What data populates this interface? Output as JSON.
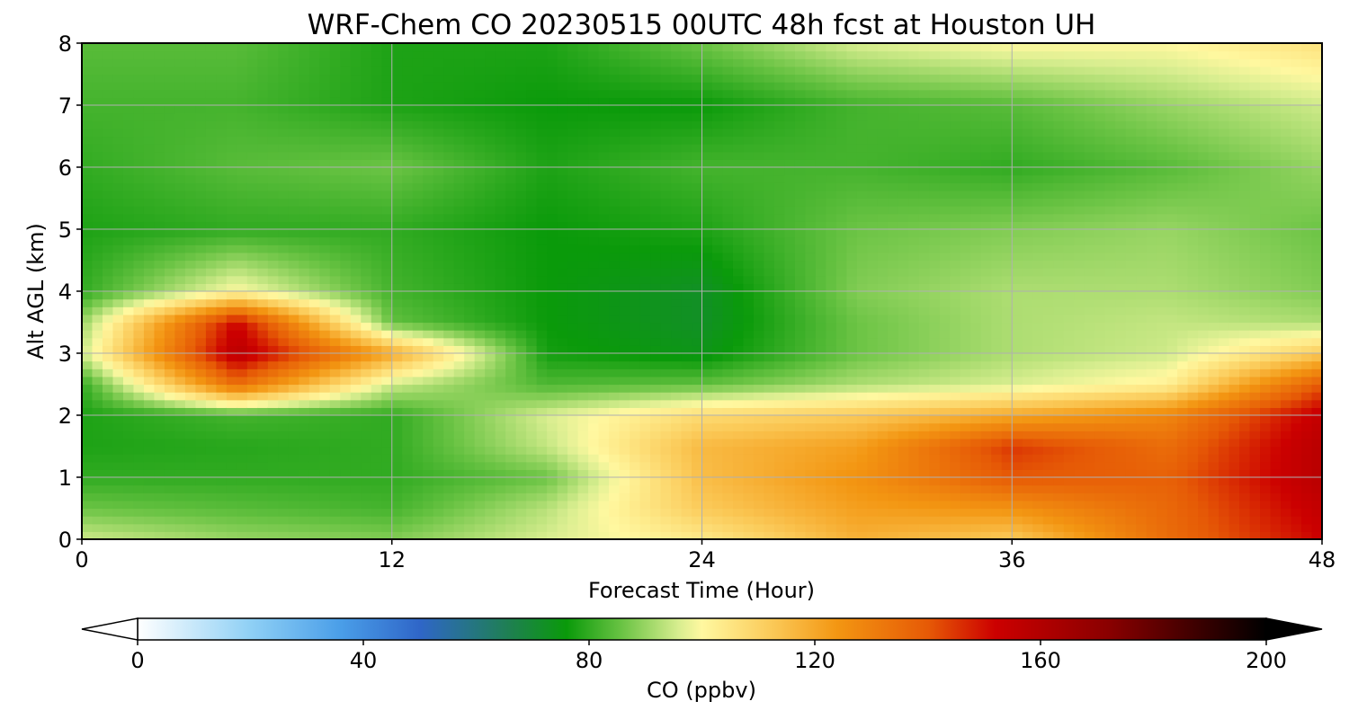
{
  "chart_data": {
    "type": "heatmap",
    "title": "WRF-Chem CO  20230515 00UTC 48h fcst at Houston UH",
    "xlabel": "Forecast Time (Hour)",
    "ylabel": "Alt AGL (km)",
    "xlim": [
      0,
      48
    ],
    "ylim": [
      0,
      8
    ],
    "xticks": [
      "0",
      "12",
      "24",
      "36",
      "48"
    ],
    "yticks": [
      "0",
      "1",
      "2",
      "3",
      "4",
      "5",
      "6",
      "7",
      "8"
    ],
    "grid": true,
    "x_hours": [
      0,
      6,
      12,
      18,
      24,
      30,
      36,
      42,
      48
    ],
    "y_km": [
      0,
      0.5,
      1,
      1.5,
      2,
      2.5,
      3,
      3.5,
      4,
      5,
      6,
      7,
      8
    ],
    "values_ppbv": [
      [
        95,
        90,
        88,
        96,
        104,
        118,
        112,
        135,
        152
      ],
      [
        86,
        84,
        82,
        93,
        112,
        122,
        125,
        136,
        155
      ],
      [
        80,
        80,
        80,
        86,
        115,
        125,
        140,
        138,
        158
      ],
      [
        78,
        79,
        80,
        94,
        116,
        122,
        145,
        135,
        158
      ],
      [
        78,
        82,
        80,
        96,
        108,
        112,
        120,
        128,
        155
      ],
      [
        80,
        135,
        95,
        83,
        85,
        92,
        96,
        102,
        140
      ],
      [
        95,
        158,
        120,
        77,
        74,
        86,
        92,
        95,
        112
      ],
      [
        90,
        152,
        85,
        76,
        72,
        86,
        92,
        94,
        92
      ],
      [
        80,
        100,
        82,
        76,
        72,
        88,
        92,
        92,
        88
      ],
      [
        78,
        80,
        80,
        76,
        78,
        86,
        88,
        90,
        86
      ],
      [
        80,
        84,
        86,
        78,
        82,
        82,
        80,
        84,
        90
      ],
      [
        82,
        82,
        78,
        76,
        76,
        82,
        84,
        90,
        95
      ],
      [
        84,
        84,
        78,
        78,
        86,
        96,
        100,
        100,
        106
      ]
    ],
    "colorbar": {
      "label": "CO  (ppbv)",
      "ticks": [
        "0",
        "40",
        "80",
        "120",
        "160",
        "200"
      ],
      "range": [
        0,
        200
      ],
      "extend": "both",
      "stops": [
        {
          "v": 0,
          "c": "#ffffff"
        },
        {
          "v": 20,
          "c": "#8fd0f5"
        },
        {
          "v": 36,
          "c": "#4a9ee8"
        },
        {
          "v": 50,
          "c": "#2f66c8"
        },
        {
          "v": 66,
          "c": "#1e8050"
        },
        {
          "v": 76,
          "c": "#0a9a0a"
        },
        {
          "v": 86,
          "c": "#6cc445"
        },
        {
          "v": 96,
          "c": "#d9ee90"
        },
        {
          "v": 100,
          "c": "#fff8a0"
        },
        {
          "v": 112,
          "c": "#fbcb5a"
        },
        {
          "v": 124,
          "c": "#f39612"
        },
        {
          "v": 140,
          "c": "#e65a06"
        },
        {
          "v": 152,
          "c": "#cc0000"
        },
        {
          "v": 172,
          "c": "#8a0000"
        },
        {
          "v": 200,
          "c": "#000000"
        }
      ]
    }
  }
}
